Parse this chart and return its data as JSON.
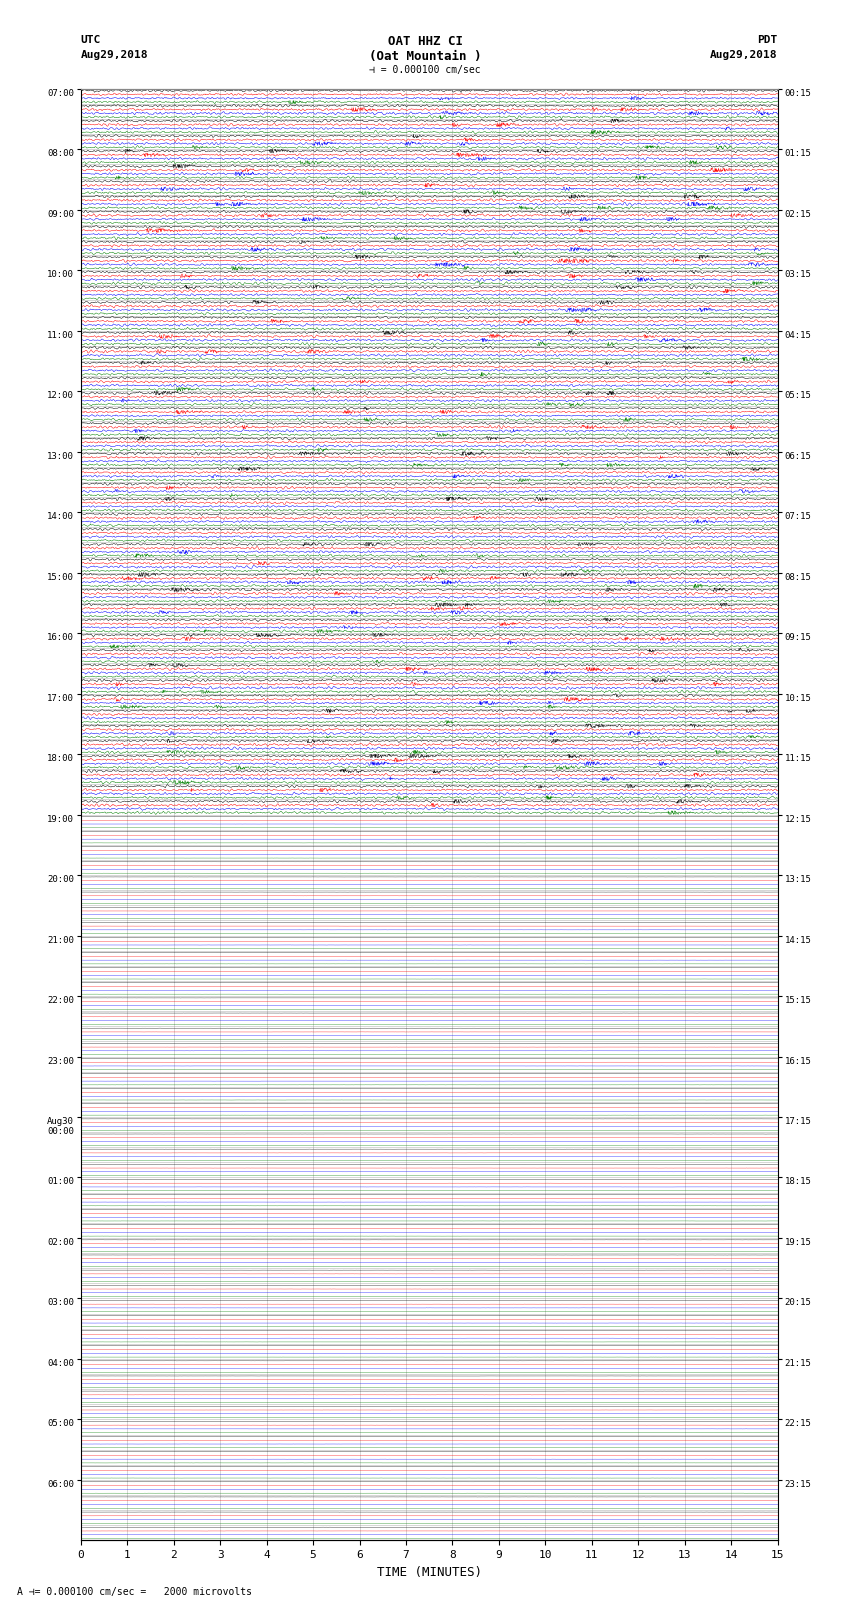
{
  "title_line1": "OAT HHZ CI",
  "title_line2": "(Oat Mountain )",
  "title_scale": "= 0.000100 cm/sec",
  "label_utc": "UTC",
  "label_pdt": "PDT",
  "label_date_left": "Aug29,2018",
  "label_date_right": "Aug29,2018",
  "xlabel": "TIME (MINUTES)",
  "footer_left": "A",
  "footer_scale": "= 0.000100 cm/sec =   2000 microvolts",
  "bg_color": "#ffffff",
  "trace_colors": [
    "black",
    "red",
    "blue",
    "green"
  ],
  "left_times_utc": [
    "07:00",
    "",
    "",
    "",
    "08:00",
    "",
    "",
    "",
    "09:00",
    "",
    "",
    "",
    "10:00",
    "",
    "",
    "",
    "11:00",
    "",
    "",
    "",
    "12:00",
    "",
    "",
    "",
    "13:00",
    "",
    "",
    "",
    "14:00",
    "",
    "",
    "",
    "15:00",
    "",
    "",
    "",
    "16:00",
    "",
    "",
    "",
    "17:00",
    "",
    "",
    "",
    "18:00",
    "",
    "",
    "",
    "19:00",
    "",
    "",
    "",
    "20:00",
    "",
    "",
    "",
    "21:00",
    "",
    "",
    "",
    "22:00",
    "",
    "",
    "",
    "23:00",
    "",
    "",
    "",
    "Aug30\n00:00",
    "",
    "",
    "",
    "01:00",
    "",
    "",
    "",
    "02:00",
    "",
    "",
    "",
    "03:00",
    "",
    "",
    "",
    "04:00",
    "",
    "",
    "",
    "05:00",
    "",
    "",
    "",
    "06:00",
    "",
    "",
    ""
  ],
  "right_times_pdt": [
    "00:15",
    "",
    "",
    "",
    "01:15",
    "",
    "",
    "",
    "02:15",
    "",
    "",
    "",
    "03:15",
    "",
    "",
    "",
    "04:15",
    "",
    "",
    "",
    "05:15",
    "",
    "",
    "",
    "06:15",
    "",
    "",
    "",
    "07:15",
    "",
    "",
    "",
    "08:15",
    "",
    "",
    "",
    "09:15",
    "",
    "",
    "",
    "10:15",
    "",
    "",
    "",
    "11:15",
    "",
    "",
    "",
    "12:15",
    "",
    "",
    "",
    "13:15",
    "",
    "",
    "",
    "14:15",
    "",
    "",
    "",
    "15:15",
    "",
    "",
    "",
    "16:15",
    "",
    "",
    "",
    "17:15",
    "",
    "",
    "",
    "18:15",
    "",
    "",
    "",
    "19:15",
    "",
    "",
    "",
    "20:15",
    "",
    "",
    "",
    "21:15",
    "",
    "",
    "",
    "22:15",
    "",
    "",
    "",
    "23:15",
    "",
    "",
    ""
  ],
  "n_rows": 96,
  "traces_per_row": 4,
  "active_rows": 48,
  "xmin": 0,
  "xmax": 15,
  "grid_color": "#888888",
  "grid_linewidth": 0.4
}
